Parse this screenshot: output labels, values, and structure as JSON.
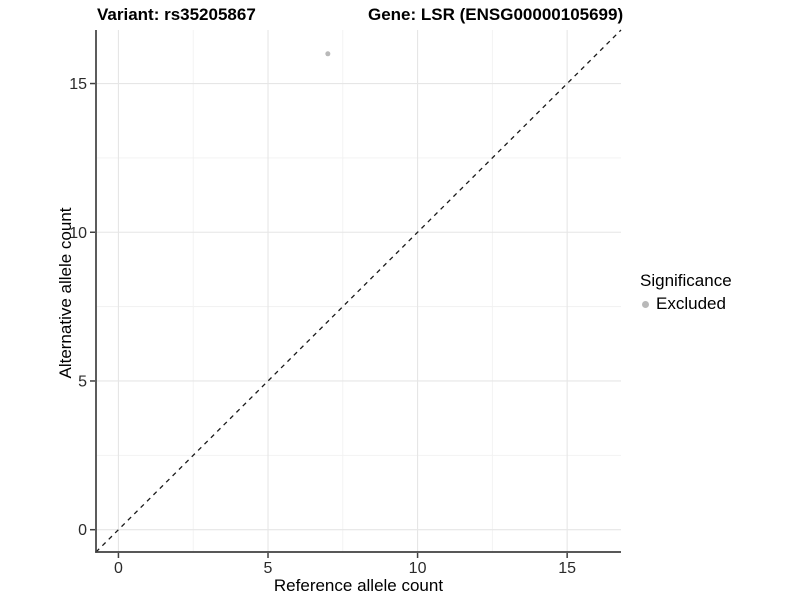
{
  "figure": {
    "title_left": "Variant: rs35205867",
    "title_right": "Gene: LSR (ENSG00000105699)"
  },
  "chart_data": {
    "type": "scatter",
    "title": "Variant: rs35205867   Gene: LSR (ENSG00000105699)",
    "xlabel": "Reference allele count",
    "ylabel": "Alternative allele count",
    "xlim": [
      -0.75,
      16.8
    ],
    "ylim": [
      -0.75,
      16.8
    ],
    "x_ticks": [
      0,
      5,
      10,
      15
    ],
    "y_ticks": [
      0,
      5,
      10,
      15
    ],
    "x_minor_ticks": [
      2.5,
      7.5,
      12.5
    ],
    "y_minor_ticks": [
      2.5,
      7.5,
      12.5
    ],
    "grid": true,
    "series": [
      {
        "name": "Excluded",
        "color": "#b9b9b9",
        "points": [
          {
            "x": 7,
            "y": 16
          }
        ]
      }
    ],
    "reference_line": {
      "equation": "y = x",
      "style": "dashed",
      "color": "#1a1a1a"
    },
    "legend": {
      "title": "Significance",
      "position": "right",
      "items": [
        {
          "label": "Excluded",
          "color": "#b9b9b9"
        }
      ]
    },
    "colors": {
      "background": "#ffffff",
      "grid_major": "#e6e6e6",
      "grid_minor": "#f1f1f1",
      "axis_line": "#404040",
      "tick_label": "#2b2b2b",
      "point": "#b9b9b9"
    }
  }
}
